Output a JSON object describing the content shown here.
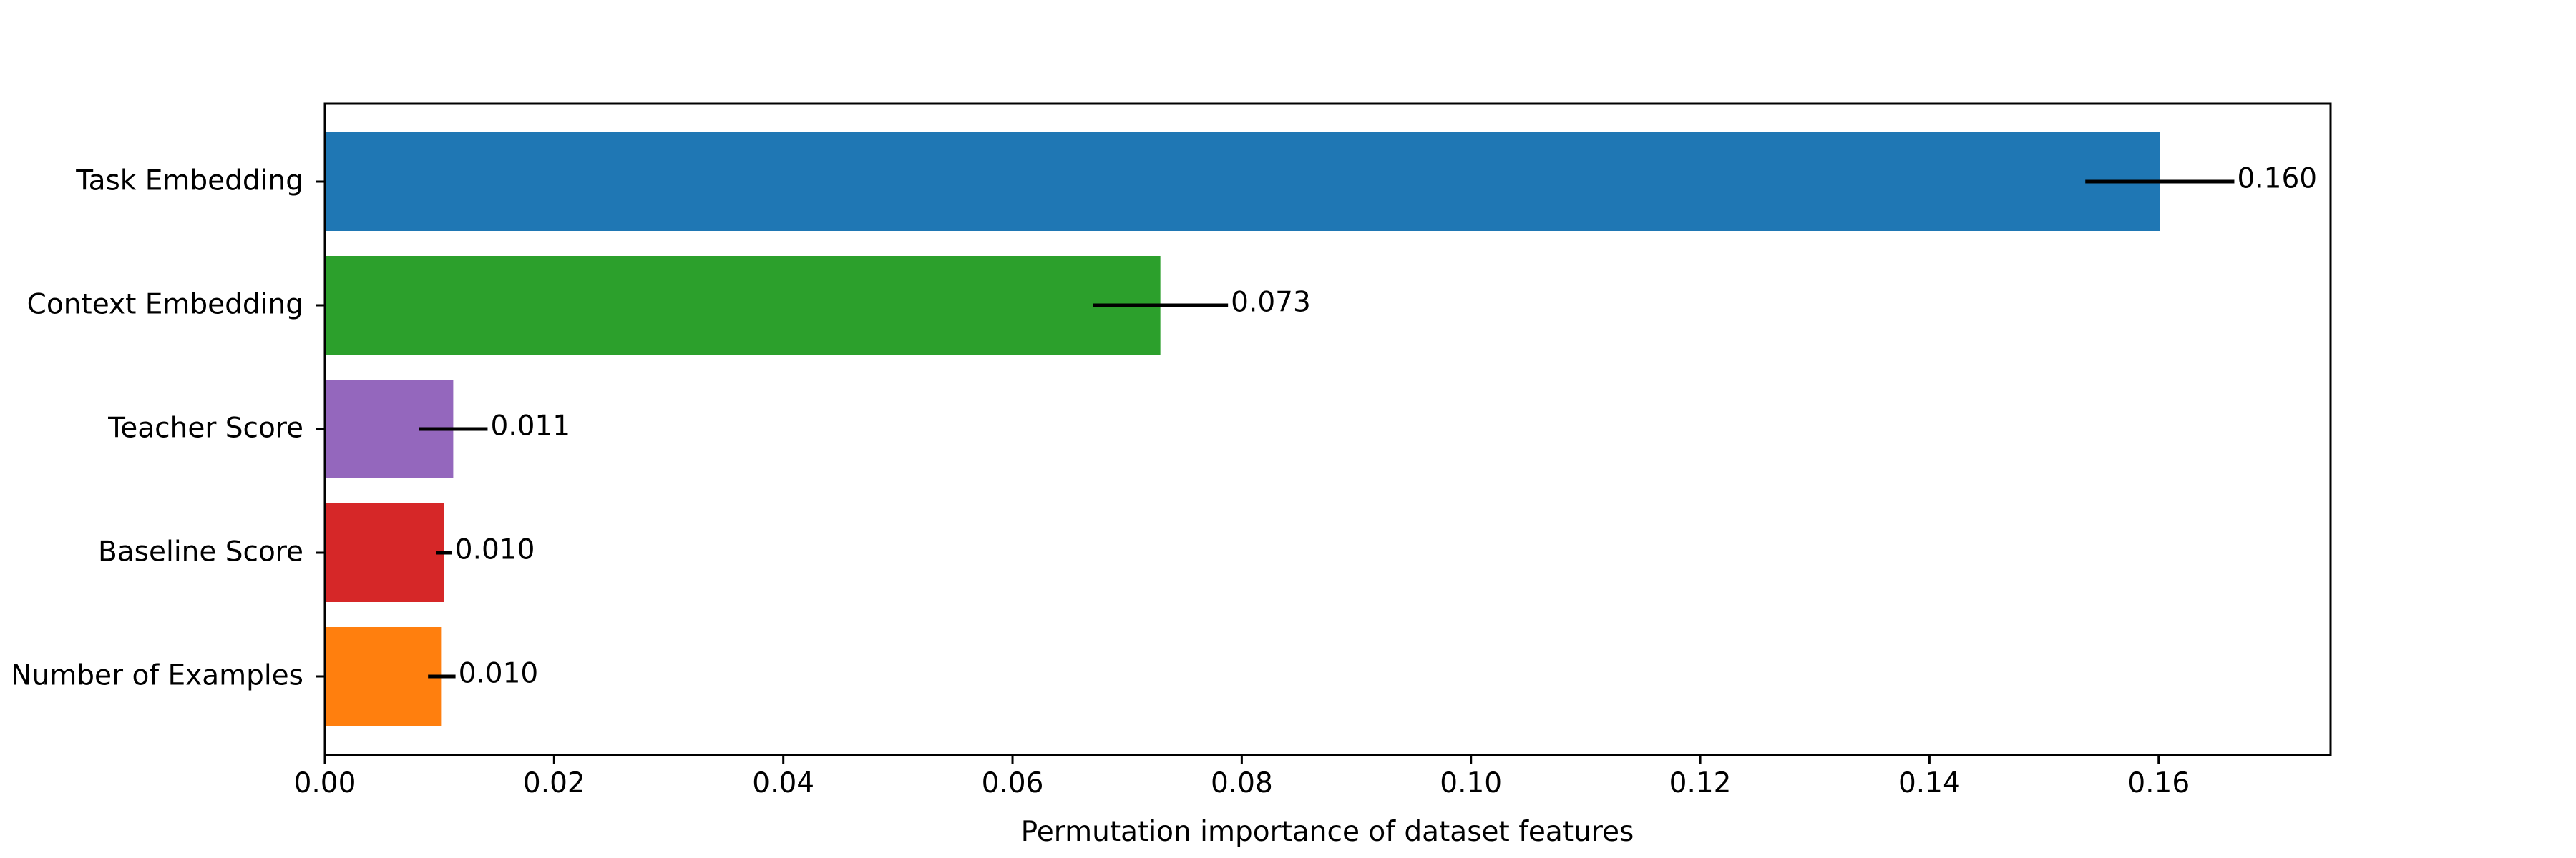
{
  "chart_data": {
    "type": "bar",
    "orientation": "horizontal",
    "title": "",
    "xlabel": "Permutation importance of dataset features",
    "ylabel": "",
    "xlim": [
      0,
      0.175
    ],
    "x_ticks": [
      0,
      0.02,
      0.04,
      0.06,
      0.08,
      0.1,
      0.12,
      0.14,
      0.16
    ],
    "x_tick_labels": [
      "0.00",
      "0.02",
      "0.04",
      "0.06",
      "0.08",
      "0.10",
      "0.12",
      "0.14",
      "0.16"
    ],
    "grid": false,
    "categories": [
      "Number of Examples",
      "Baseline Score",
      "Teacher Score",
      "Context Embedding",
      "Task Embedding"
    ],
    "values": [
      0.0102,
      0.0104,
      0.0112,
      0.0729,
      0.1601
    ],
    "errors": [
      0.0012,
      0.0007,
      0.003,
      0.0059,
      0.0065
    ],
    "value_labels": [
      "0.010",
      "0.010",
      "0.011",
      "0.073",
      "0.160"
    ],
    "colors": [
      "#ff7f0e",
      "#d62728",
      "#9467bd",
      "#2ca02c",
      "#1f77b4"
    ]
  }
}
